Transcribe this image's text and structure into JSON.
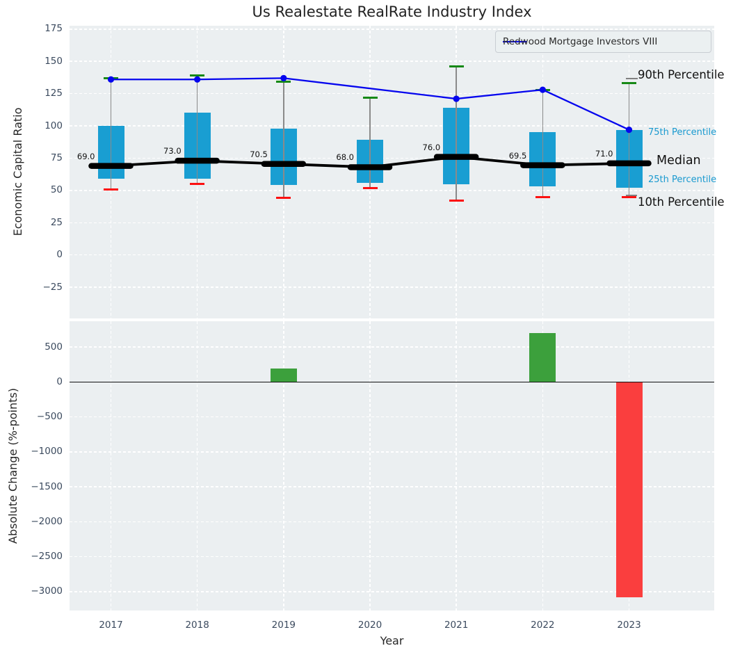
{
  "title": "Us Realestate RealRate Industry Index",
  "legend": {
    "series_label": "Redwood Mortgage Investors VIII"
  },
  "annotations": {
    "p90": "90th Percentile",
    "p75": "75th Percentile",
    "median": "Median",
    "p25": "25th Percentile",
    "p10": "10th Percentile"
  },
  "colors": {
    "box": "#199ed2",
    "company_line": "#0505ee",
    "cap_high": "#168916",
    "cap_low": "#fc1010",
    "bar_positive": "#3ca03c",
    "bar_negative": "#fa3e3e",
    "median_line": "#000000",
    "whisker": "#8a8a8a",
    "plot_bg": "#ebeff1",
    "tick_label": "#3b4a5e",
    "percentile_text": "#1a9ad0",
    "zero_line": "#111111"
  },
  "chart_data": [
    {
      "type": "box-percentile+line",
      "ylabel": "Economic Capital Ratio",
      "x": [
        2017,
        2018,
        2019,
        2020,
        2021,
        2022,
        2023
      ],
      "yticks": [
        175,
        150,
        125,
        100,
        75,
        50,
        25,
        0,
        -25
      ],
      "ylim": [
        -49,
        178
      ],
      "grid": true,
      "legend_position": "upper right",
      "series": [
        {
          "name": "90th Percentile",
          "values": [
            137,
            139,
            134,
            122,
            146,
            128,
            133
          ]
        },
        {
          "name": "75th Percentile",
          "values": [
            100,
            110,
            98,
            89,
            114,
            95,
            97
          ]
        },
        {
          "name": "Median",
          "values": [
            69.0,
            73.0,
            70.5,
            68.0,
            76.0,
            69.5,
            71.0
          ]
        },
        {
          "name": "25th Percentile",
          "values": [
            59,
            59,
            54,
            56,
            55,
            53,
            52
          ]
        },
        {
          "name": "10th Percentile",
          "values": [
            51,
            55,
            44,
            52,
            42,
            45,
            45
          ]
        },
        {
          "name": "Redwood Mortgage Investors VIII",
          "values": [
            136,
            136,
            137,
            null,
            121,
            128,
            97
          ]
        }
      ],
      "median_labels": [
        "69.0",
        "73.0",
        "70.5",
        "68.0",
        "76.0",
        "69.5",
        "71.0"
      ]
    },
    {
      "type": "bar",
      "ylabel": "Absolute Change (%-points)",
      "xlabel": "Year",
      "categories": [
        2017,
        2018,
        2019,
        2020,
        2021,
        2022,
        2023
      ],
      "values": [
        0,
        0,
        190,
        0,
        0,
        700,
        -3080
      ],
      "yticks": [
        500,
        0,
        -500,
        -1000,
        -1500,
        -2000,
        -2500,
        -3000
      ],
      "ylim": [
        -3270,
        870
      ],
      "grid": true
    }
  ]
}
